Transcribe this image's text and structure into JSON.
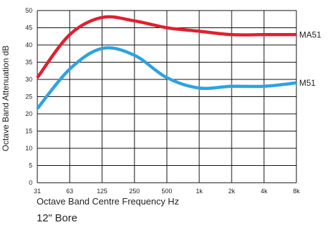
{
  "chart_data": {
    "type": "line",
    "categories": [
      "31",
      "63",
      "125",
      "250",
      "500",
      "1k",
      "2k",
      "4k",
      "8k"
    ],
    "ylim": [
      0,
      50
    ],
    "yticks": [
      0,
      5,
      10,
      15,
      20,
      25,
      30,
      35,
      40,
      45,
      50
    ],
    "ylabel": "Octave Band Attenuation dB",
    "xlabel": "Octave Band Centre Frequency Hz",
    "subtitle": "12\" Bore",
    "grid": true,
    "series": [
      {
        "name": "MA51",
        "color": "#e0202e",
        "values": [
          30.5,
          43,
          48,
          47,
          45,
          44,
          43,
          43,
          43
        ]
      },
      {
        "name": "M51",
        "color": "#2ea3e0",
        "values": [
          21.5,
          33,
          39,
          37,
          30.5,
          27.5,
          28,
          28,
          29
        ]
      }
    ]
  }
}
